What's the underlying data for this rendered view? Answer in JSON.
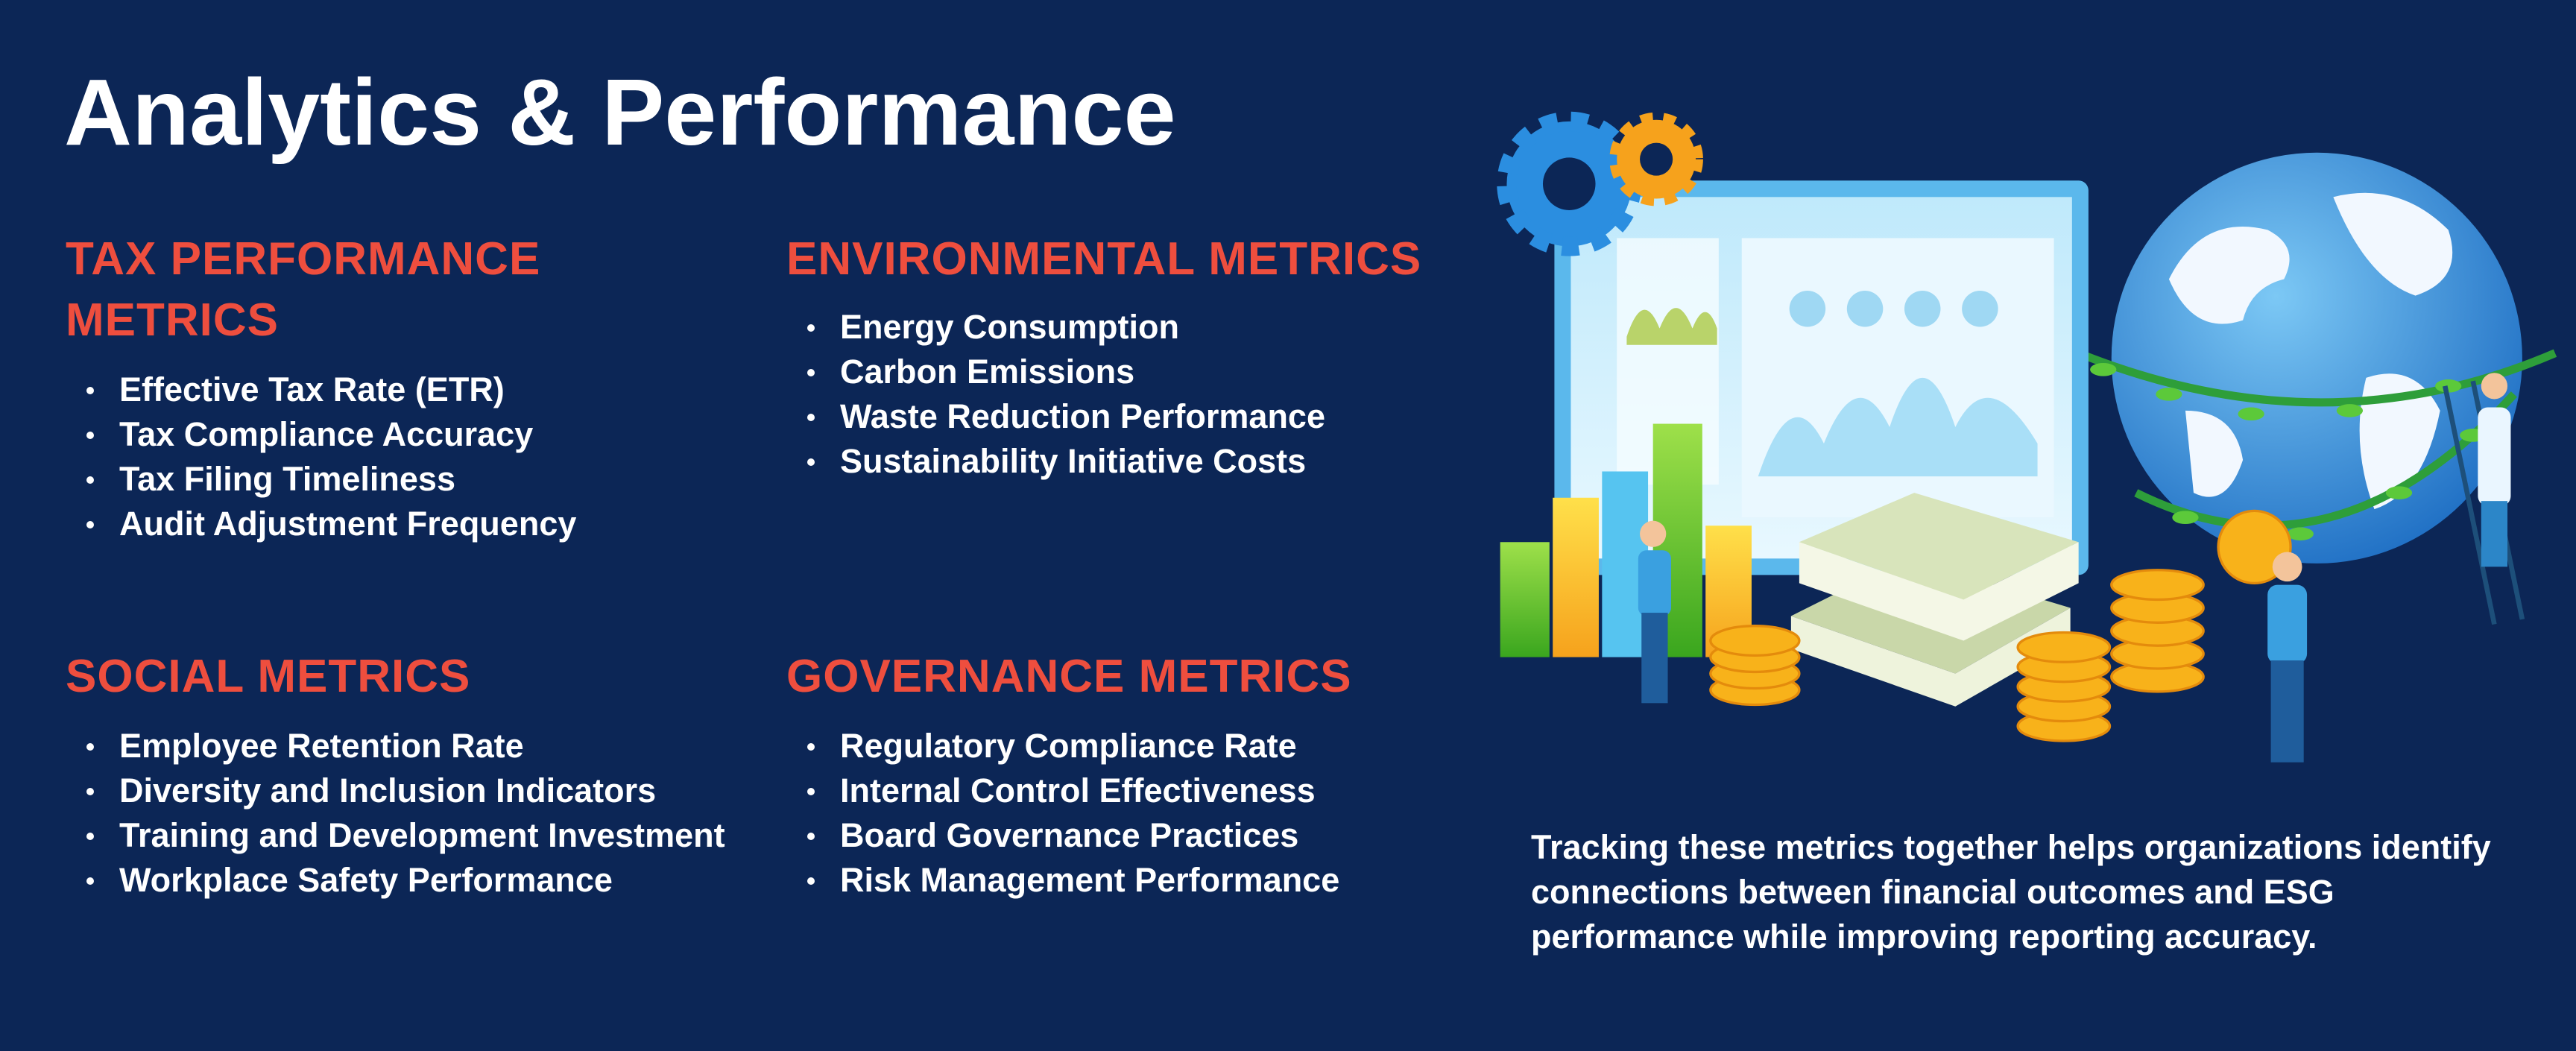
{
  "title": "Analytics & Performance",
  "sections": [
    {
      "heading": "TAX PERFORMANCE METRICS",
      "items": [
        "Effective Tax Rate (ETR)",
        "Tax Compliance Accuracy",
        "Tax Filing Timeliness",
        "Audit Adjustment Frequency"
      ]
    },
    {
      "heading": "ENVIRONMENTAL METRICS",
      "items": [
        "Energy Consumption",
        "Carbon Emissions",
        "Waste Reduction Performance",
        "Sustainability Initiative Costs"
      ]
    },
    {
      "heading": "SOCIAL METRICS",
      "items": [
        "Employee Retention Rate",
        "Diversity and Inclusion Indicators",
        "Training and Development Investment",
        "Workplace Safety Performance"
      ]
    },
    {
      "heading": "GOVERNANCE METRICS",
      "items": [
        "Regulatory Compliance Rate",
        "Internal Control Effectiveness",
        "Board Governance Practices",
        "Risk Management Performance"
      ]
    }
  ],
  "paragraph": "Tracking these metrics together helps organizations identify connections between financial outcomes and ESG performance while improving reporting accuracy."
}
